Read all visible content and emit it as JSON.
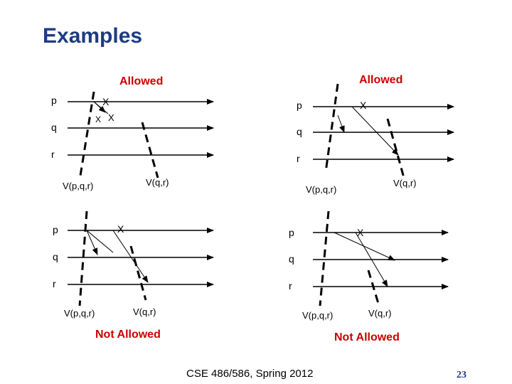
{
  "slide": {
    "title": "Examples",
    "footer": "CSE 486/586, Spring 2012",
    "page_number": "23",
    "title_color": "#1f3b82",
    "caption_color": "#cc0000"
  },
  "process_labels": [
    "p",
    "q",
    "r"
  ],
  "event_label": "X",
  "cut_labels": {
    "pqr": "V(p,q,r)",
    "qr": "V(q,r)"
  },
  "panels": {
    "top_left": {
      "caption": "Allowed"
    },
    "top_right": {
      "caption": "Allowed"
    },
    "bottom_left": {
      "caption": "Not Allowed"
    },
    "bottom_right": {
      "caption": "Not Allowed"
    }
  }
}
